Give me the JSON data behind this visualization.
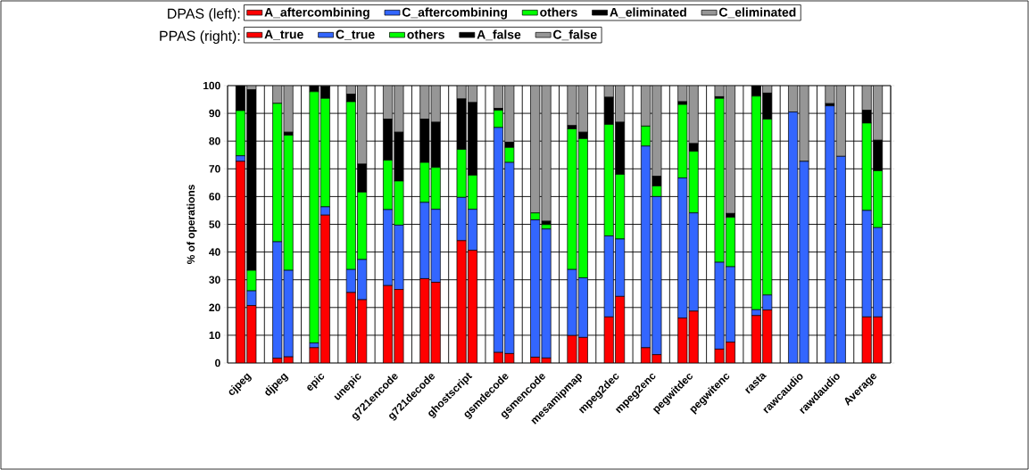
{
  "chart_data": [
    {
      "type": "bar",
      "stacked": true,
      "categories": [
        "cjpeg",
        "djpeg",
        "epic",
        "unepic",
        "g721encode",
        "g721decode",
        "ghostscript",
        "gsmdecode",
        "gsmencode",
        "mesamipmap",
        "mpeg2dec",
        "mpeg2enc",
        "pegwitdec",
        "pegwitenc",
        "rasta",
        "rawcaudio",
        "rawdaudio",
        "Average"
      ],
      "ylabel": "% of operations",
      "annotations": [
        "DPAS (left):"
      ],
      "series": [
        {
          "name": "A_aftercombining",
          "color": "#ff0000",
          "values": [
            72.7,
            1.7,
            5.5,
            25.4,
            27.9,
            30.4,
            44.1,
            3.8,
            2.1,
            9.9,
            16.6,
            5.5,
            16.2,
            5.0,
            17.1,
            0,
            0,
            16.6
          ]
        },
        {
          "name": "C_aftercombining",
          "color": "#3366ff",
          "values": [
            2.0,
            42.0,
            1.7,
            8.3,
            27.4,
            27.5,
            15.6,
            81.1,
            49.5,
            23.8,
            29.2,
            72.7,
            50.5,
            31.3,
            2.1,
            90.5,
            92.7,
            38.4
          ]
        },
        {
          "name": "others",
          "color": "#00ff00",
          "values": [
            16.3,
            49.9,
            90.6,
            60.5,
            17.8,
            14.4,
            17.3,
            6.2,
            2.5,
            50.7,
            40.2,
            7.2,
            26.5,
            59.1,
            77.0,
            0,
            0,
            31.5
          ]
        },
        {
          "name": "A_eliminated",
          "color": "#000000",
          "values": [
            9.0,
            0,
            2.2,
            2.7,
            14.8,
            15.6,
            18.2,
            0.7,
            0,
            1.2,
            9.8,
            0,
            1.0,
            0.6,
            3.8,
            0,
            0.8,
            4.6
          ]
        },
        {
          "name": "C_eliminated",
          "color": "#969696",
          "values": [
            0,
            6.4,
            0,
            3.1,
            12.1,
            12.1,
            4.8,
            8.2,
            45.9,
            14.4,
            4.2,
            14.6,
            5.8,
            4.0,
            0,
            9.5,
            6.5,
            8.9
          ]
        }
      ],
      "ylim": [
        0,
        100
      ],
      "yticks": [
        0,
        10,
        20,
        30,
        40,
        50,
        60,
        70,
        80,
        90,
        100
      ],
      "grid": true,
      "legend": "top"
    },
    {
      "type": "bar",
      "stacked": true,
      "annotations": [
        "PPAS (right):"
      ],
      "series": [
        {
          "name": "A_true",
          "color": "#ff0000",
          "values": [
            20.7,
            2.2,
            53.3,
            22.8,
            26.5,
            29.1,
            40.6,
            3.4,
            1.8,
            9.2,
            24.0,
            3.0,
            18.7,
            7.5,
            19.1,
            0,
            0,
            16.6
          ]
        },
        {
          "name": "C_true",
          "color": "#3366ff",
          "values": [
            5.3,
            31.2,
            3.0,
            14.5,
            23.2,
            26.3,
            14.8,
            68.9,
            46.5,
            21.5,
            20.7,
            57.0,
            35.4,
            27.2,
            5.4,
            72.7,
            74.5,
            32.2
          ]
        },
        {
          "name": "others",
          "color": "#00ff00",
          "values": [
            7.4,
            48.7,
            39.1,
            24.3,
            15.9,
            15.1,
            12.3,
            5.4,
            1.6,
            50.2,
            23.3,
            3.8,
            22.2,
            17.8,
            63.4,
            0,
            0,
            20.5
          ]
        },
        {
          "name": "A_false",
          "color": "#000000",
          "values": [
            65.1,
            1.1,
            4.3,
            10.1,
            17.6,
            16.3,
            26.2,
            1.9,
            1.2,
            2.3,
            18.8,
            3.5,
            2.8,
            1.4,
            9.4,
            0,
            0,
            11.0
          ]
        },
        {
          "name": "C_false",
          "color": "#969696",
          "values": [
            1.5,
            16.8,
            0.3,
            28.3,
            16.8,
            13.2,
            6.1,
            20.4,
            48.9,
            16.8,
            13.2,
            32.7,
            20.9,
            46.1,
            2.7,
            27.3,
            25.5,
            19.7
          ]
        }
      ],
      "ylim": [
        0,
        100
      ],
      "tick_labels": false,
      "legend": "top"
    }
  ]
}
